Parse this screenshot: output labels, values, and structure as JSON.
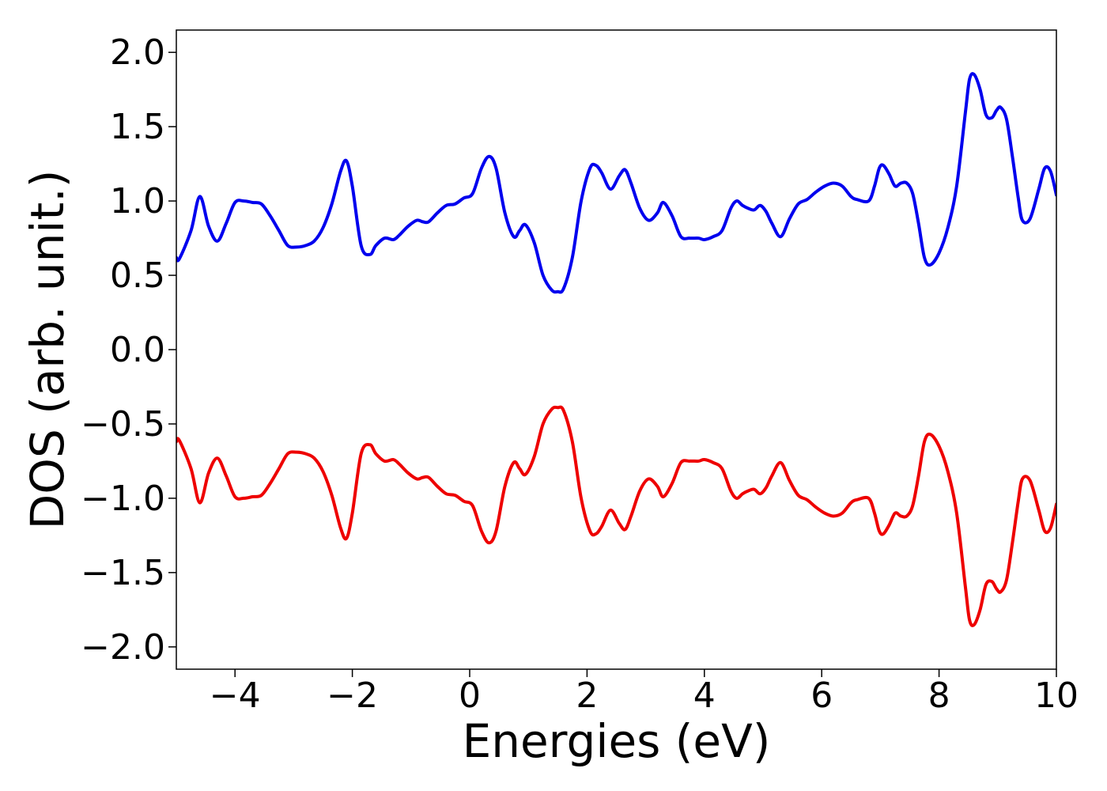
{
  "chart_data": {
    "type": "line",
    "title": "",
    "xlabel": "Energies (eV)",
    "ylabel": "DOS (arb. unit.)",
    "xlim": [
      -5,
      10
    ],
    "ylim": [
      -2.15,
      2.15
    ],
    "grid": false,
    "legend": "none",
    "x_ticks": [
      -4,
      -2,
      0,
      2,
      4,
      6,
      8,
      10
    ],
    "x_tick_labels": [
      "−4",
      "−2",
      "0",
      "2",
      "4",
      "6",
      "8",
      "10"
    ],
    "y_ticks": [
      2.0,
      1.5,
      1.0,
      0.5,
      0.0,
      -0.5,
      -1.0,
      -1.5,
      -2.0
    ],
    "y_tick_labels": [
      "2.0",
      "1.5",
      "1.0",
      "0.5",
      "0.0",
      "−0.5",
      "−1.0",
      "−1.5",
      "−2.0"
    ],
    "series": [
      {
        "color": "#0000ee",
        "x": [
          -5.0,
          -4.95,
          -4.75,
          -4.6,
          -4.45,
          -4.3,
          -4.15,
          -4.0,
          -3.85,
          -3.7,
          -3.55,
          -3.4,
          -3.25,
          -3.1,
          -2.95,
          -2.8,
          -2.65,
          -2.5,
          -2.35,
          -2.2,
          -2.1,
          -2.0,
          -1.85,
          -1.7,
          -1.6,
          -1.45,
          -1.3,
          -1.2,
          -1.05,
          -0.9,
          -0.8,
          -0.7,
          -0.55,
          -0.4,
          -0.25,
          -0.1,
          0.05,
          0.2,
          0.33,
          0.45,
          0.6,
          0.75,
          0.85,
          0.95,
          1.1,
          1.25,
          1.4,
          1.5,
          1.6,
          1.75,
          1.9,
          2.05,
          2.15,
          2.25,
          2.4,
          2.55,
          2.65,
          2.75,
          2.9,
          3.05,
          3.2,
          3.3,
          3.45,
          3.6,
          3.75,
          3.9,
          4.0,
          4.15,
          4.3,
          4.45,
          4.55,
          4.65,
          4.75,
          4.85,
          4.95,
          5.05,
          5.15,
          5.3,
          5.45,
          5.6,
          5.75,
          5.9,
          6.05,
          6.2,
          6.35,
          6.5,
          6.6,
          6.8,
          6.9,
          6.98,
          7.05,
          7.15,
          7.25,
          7.35,
          7.45,
          7.55,
          7.65,
          7.75,
          7.85,
          8.0,
          8.15,
          8.3,
          8.45,
          8.52,
          8.6,
          8.7,
          8.8,
          8.9,
          8.98,
          9.05,
          9.15,
          9.25,
          9.35,
          9.42,
          9.55,
          9.7,
          9.8,
          9.9,
          10.0
        ],
        "y": [
          0.62,
          0.61,
          0.8,
          1.03,
          0.83,
          0.73,
          0.85,
          0.99,
          1.0,
          0.99,
          0.98,
          0.9,
          0.8,
          0.7,
          0.69,
          0.7,
          0.73,
          0.82,
          0.98,
          1.2,
          1.27,
          1.1,
          0.7,
          0.64,
          0.7,
          0.75,
          0.74,
          0.77,
          0.83,
          0.87,
          0.86,
          0.86,
          0.92,
          0.97,
          0.98,
          1.02,
          1.05,
          1.22,
          1.3,
          1.22,
          0.92,
          0.76,
          0.8,
          0.84,
          0.72,
          0.5,
          0.4,
          0.39,
          0.41,
          0.62,
          1.0,
          1.22,
          1.24,
          1.19,
          1.08,
          1.17,
          1.21,
          1.12,
          0.95,
          0.87,
          0.92,
          0.99,
          0.9,
          0.76,
          0.75,
          0.75,
          0.74,
          0.76,
          0.8,
          0.95,
          1.0,
          0.97,
          0.95,
          0.94,
          0.97,
          0.93,
          0.85,
          0.76,
          0.88,
          0.98,
          1.01,
          1.06,
          1.1,
          1.12,
          1.1,
          1.03,
          1.01,
          1.0,
          1.1,
          1.22,
          1.24,
          1.18,
          1.1,
          1.12,
          1.12,
          1.05,
          0.85,
          0.62,
          0.57,
          0.65,
          0.82,
          1.1,
          1.6,
          1.82,
          1.85,
          1.75,
          1.58,
          1.56,
          1.61,
          1.63,
          1.55,
          1.3,
          1.02,
          0.87,
          0.88,
          1.08,
          1.22,
          1.2,
          1.04
        ]
      },
      {
        "color": "#ee0000",
        "x": [
          -5.0,
          -4.95,
          -4.75,
          -4.6,
          -4.45,
          -4.3,
          -4.15,
          -4.0,
          -3.85,
          -3.7,
          -3.55,
          -3.4,
          -3.25,
          -3.1,
          -2.95,
          -2.8,
          -2.65,
          -2.5,
          -2.35,
          -2.2,
          -2.1,
          -2.0,
          -1.85,
          -1.7,
          -1.6,
          -1.45,
          -1.3,
          -1.2,
          -1.05,
          -0.9,
          -0.8,
          -0.7,
          -0.55,
          -0.4,
          -0.25,
          -0.1,
          0.05,
          0.2,
          0.33,
          0.45,
          0.6,
          0.75,
          0.85,
          0.95,
          1.1,
          1.25,
          1.4,
          1.5,
          1.6,
          1.75,
          1.9,
          2.05,
          2.15,
          2.25,
          2.4,
          2.55,
          2.65,
          2.75,
          2.9,
          3.05,
          3.2,
          3.3,
          3.45,
          3.6,
          3.75,
          3.9,
          4.0,
          4.15,
          4.3,
          4.45,
          4.55,
          4.65,
          4.75,
          4.85,
          4.95,
          5.05,
          5.15,
          5.3,
          5.45,
          5.6,
          5.75,
          5.9,
          6.05,
          6.2,
          6.35,
          6.5,
          6.6,
          6.8,
          6.9,
          6.98,
          7.05,
          7.15,
          7.25,
          7.35,
          7.45,
          7.55,
          7.65,
          7.75,
          7.85,
          8.0,
          8.15,
          8.3,
          8.45,
          8.52,
          8.6,
          8.7,
          8.8,
          8.9,
          8.98,
          9.05,
          9.15,
          9.25,
          9.35,
          9.42,
          9.55,
          9.7,
          9.8,
          9.9,
          10.0
        ],
        "y": [
          -0.62,
          -0.61,
          -0.8,
          -1.03,
          -0.83,
          -0.73,
          -0.85,
          -0.99,
          -1.0,
          -0.99,
          -0.98,
          -0.9,
          -0.8,
          -0.7,
          -0.69,
          -0.7,
          -0.73,
          -0.82,
          -0.98,
          -1.2,
          -1.27,
          -1.1,
          -0.7,
          -0.64,
          -0.7,
          -0.75,
          -0.74,
          -0.77,
          -0.83,
          -0.87,
          -0.86,
          -0.86,
          -0.92,
          -0.97,
          -0.98,
          -1.02,
          -1.05,
          -1.22,
          -1.3,
          -1.22,
          -0.92,
          -0.76,
          -0.8,
          -0.84,
          -0.72,
          -0.5,
          -0.4,
          -0.39,
          -0.41,
          -0.62,
          -1.0,
          -1.22,
          -1.24,
          -1.19,
          -1.08,
          -1.17,
          -1.21,
          -1.12,
          -0.95,
          -0.87,
          -0.92,
          -0.99,
          -0.9,
          -0.76,
          -0.75,
          -0.75,
          -0.74,
          -0.76,
          -0.8,
          -0.95,
          -1.0,
          -0.97,
          -0.95,
          -0.94,
          -0.97,
          -0.93,
          -0.85,
          -0.76,
          -0.88,
          -0.98,
          -1.01,
          -1.06,
          -1.1,
          -1.12,
          -1.1,
          -1.03,
          -1.01,
          -1.0,
          -1.1,
          -1.22,
          -1.24,
          -1.18,
          -1.1,
          -1.12,
          -1.12,
          -1.05,
          -0.85,
          -0.62,
          -0.57,
          -0.65,
          -0.82,
          -1.1,
          -1.6,
          -1.82,
          -1.85,
          -1.75,
          -1.58,
          -1.56,
          -1.61,
          -1.63,
          -1.55,
          -1.3,
          -1.02,
          -0.87,
          -0.88,
          -1.08,
          -1.22,
          -1.2,
          -1.04
        ]
      }
    ]
  }
}
